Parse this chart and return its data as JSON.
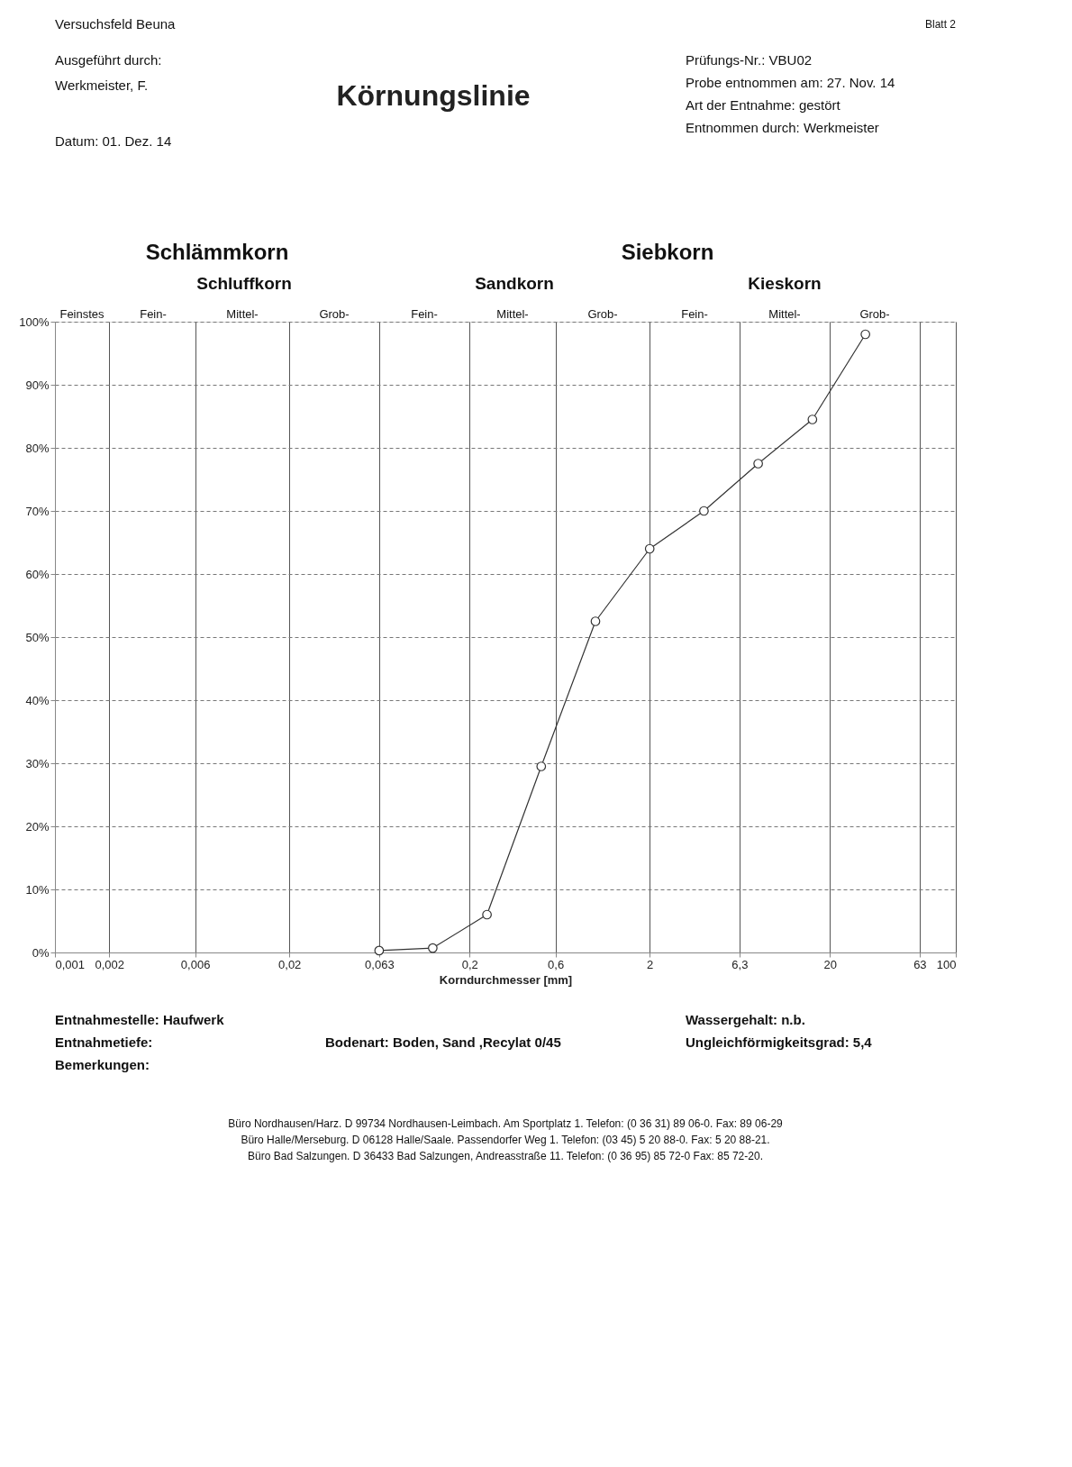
{
  "chart_data": {
    "type": "line",
    "title": "Körnungslinie",
    "xlabel": "Korndurchmesser [mm]",
    "x": [
      0.063,
      0.125,
      0.25,
      0.5,
      1,
      2,
      4,
      8,
      16,
      31.5
    ],
    "series": [
      {
        "color": "#333333",
        "values": [
          0.3,
          0.7,
          6,
          29.5,
          52.5,
          64,
          70,
          77.5,
          84.5,
          98
        ]
      }
    ],
    "marker": "circle",
    "line_style": "solid",
    "log": "x",
    "grid": true,
    "xlim": [
      0.001,
      100
    ],
    "ylim": [
      0,
      100
    ],
    "xticks": [
      {
        "value": 0.001,
        "label": "0,001"
      },
      {
        "value": 0.002,
        "label": "0,002"
      },
      {
        "value": 0.006,
        "label": "0,006"
      },
      {
        "value": 0.02,
        "label": "0,02"
      },
      {
        "value": 0.063,
        "label": "0,063"
      },
      {
        "value": 0.2,
        "label": "0,2"
      },
      {
        "value": 0.6,
        "label": "0,6"
      },
      2,
      {
        "value": 6.3,
        "label": "6,3"
      },
      20,
      63,
      100
    ],
    "yticks": [
      {
        "value": 0,
        "label": "0%"
      },
      {
        "value": 10,
        "label": "10%"
      },
      {
        "value": 20,
        "label": "20%"
      },
      {
        "value": 30,
        "label": "30%"
      },
      {
        "value": 40,
        "label": "40%"
      },
      {
        "value": 50,
        "label": "50%"
      },
      {
        "value": 60,
        "label": "60%"
      },
      {
        "value": 70,
        "label": "70%"
      },
      {
        "value": 80,
        "label": "80%"
      },
      {
        "value": 90,
        "label": "90%"
      },
      {
        "value": 100,
        "label": "100%"
      }
    ],
    "annotations": [
      "Versuchsfeld Beuna",
      "Blatt 2",
      "Ausgeführt durch:",
      "Werkmeister, F.",
      "Datum:   01. Dez. 14",
      "Prüfungs-Nr.:   VBU02",
      "Probe entnommen am:   27. Nov. 14",
      "Art der Entnahme:   gestört",
      "Entnommen durch:   Werkmeister",
      "Entnahmestelle:   Haufwerk",
      "Entnahmetiefe:",
      "Bemerkungen:",
      "Bodenart:   Boden, Sand ,Recylat 0/45",
      "Wassergehalt:   n.b.",
      "Ungleichförmigkeitsgrad:   5,4",
      "Büro Nordhausen/Harz. D 99734 Nordhausen-Leimbach. Am Sportplatz 1. Telefon: (0 36 31) 89 06-0. Fax: 89 06-29",
      "Büro Halle/Merseburg. D 06128 Halle/Saale. Passendorfer Weg 1. Telefon: (03 45) 5 20 88-0. Fax: 5 20 88-21.",
      "Büro Bad Salzungen. D 36433 Bad Salzungen, Andreasstraße 11. Telefon: (0 36 95) 85 72-0 Fax: 85 72-20.",
      "Schlämmkorn",
      "Siebkorn",
      "Schluffkorn",
      "Sandkorn",
      "Kieskorn",
      "Feinstes",
      "Fein-",
      "Mittel-",
      "Grob-",
      "Fein-",
      "Mittel-",
      "Grob-",
      "Fein-",
      "Mittel-",
      "Grob-"
    ]
  }
}
